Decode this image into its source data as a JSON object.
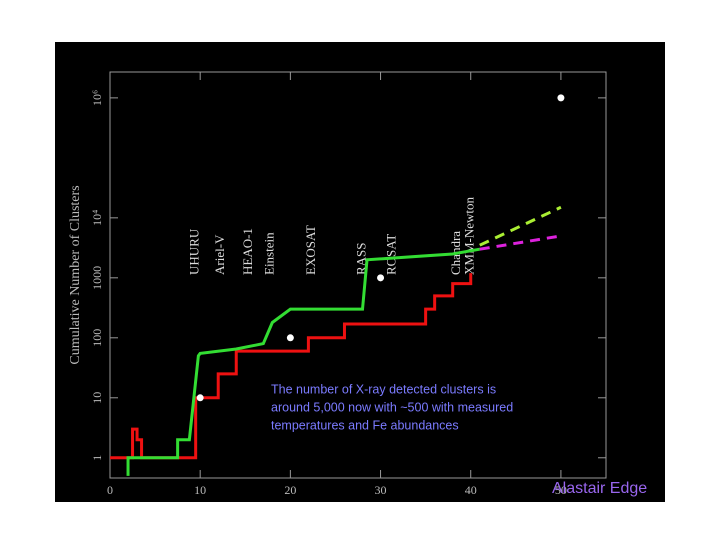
{
  "chart_data": {
    "type": "line",
    "ylabel": "Cumulative Number of Clusters",
    "caption": [
      "The number of X-ray detected clusters is",
      "around 5,000 now with ~500 with measured",
      "temperatures and Fe abundances"
    ],
    "credit": "Alastair Edge",
    "xlim": [
      0,
      55
    ],
    "xticks": [
      0,
      10,
      20,
      30,
      40,
      50
    ],
    "ylim": [
      0.46,
      2700000
    ],
    "log_y": true,
    "yticks": [
      1,
      10,
      100,
      1000,
      {
        "value": 10000,
        "label": "10⁴"
      },
      {
        "value": 1000000,
        "label": "10⁶"
      }
    ],
    "annotations": [
      {
        "text": "UHURU",
        "x": 9.5
      },
      {
        "text": "Ariel-V",
        "x": 12.3
      },
      {
        "text": "HEAO-1",
        "x": 15.4
      },
      {
        "text": "Einstein",
        "x": 17.8
      },
      {
        "text": "EXOSAT",
        "x": 22.4
      },
      {
        "text": "RASS",
        "x": 28
      },
      {
        "text": "ROSAT",
        "x": 31.3
      },
      {
        "text": "Chandra",
        "x": 38.5
      },
      {
        "text": "XMM-Newton",
        "x": 40
      }
    ],
    "series": [
      {
        "color": "#ee1111",
        "dash": false,
        "x": [
          0,
          2.5,
          2.5,
          3,
          3,
          3.5,
          3.5,
          9.5,
          9.5,
          12,
          12,
          14,
          14,
          22,
          22,
          26,
          26,
          35,
          35,
          36,
          36,
          38,
          38,
          40,
          40
        ],
        "values": [
          1,
          1,
          3,
          3,
          2,
          2,
          1,
          1,
          10,
          10,
          25,
          25,
          60,
          60,
          100,
          100,
          170,
          170,
          300,
          300,
          500,
          500,
          800,
          800,
          1200
        ]
      },
      {
        "color": "#33dd33",
        "dash": false,
        "x": [
          2,
          2,
          7.5,
          7.5,
          8.8,
          9.8,
          10,
          14,
          17,
          18,
          20,
          28,
          28.5,
          38,
          41
        ],
        "values": [
          0.5,
          1,
          1,
          2,
          2,
          50,
          55,
          65,
          80,
          180,
          300,
          300,
          2000,
          2500,
          3000
        ]
      },
      {
        "color": "#aaee33",
        "dash": true,
        "x": [
          41,
          50
        ],
        "values": [
          3500,
          15000
        ]
      },
      {
        "color": "#dd22dd",
        "dash": true,
        "x": [
          41,
          50
        ],
        "values": [
          3000,
          5000
        ]
      }
    ],
    "points": {
      "color": "#ffffff",
      "x": [
        10,
        20,
        30,
        50
      ],
      "values": [
        10,
        100,
        1000,
        1000000
      ]
    }
  }
}
